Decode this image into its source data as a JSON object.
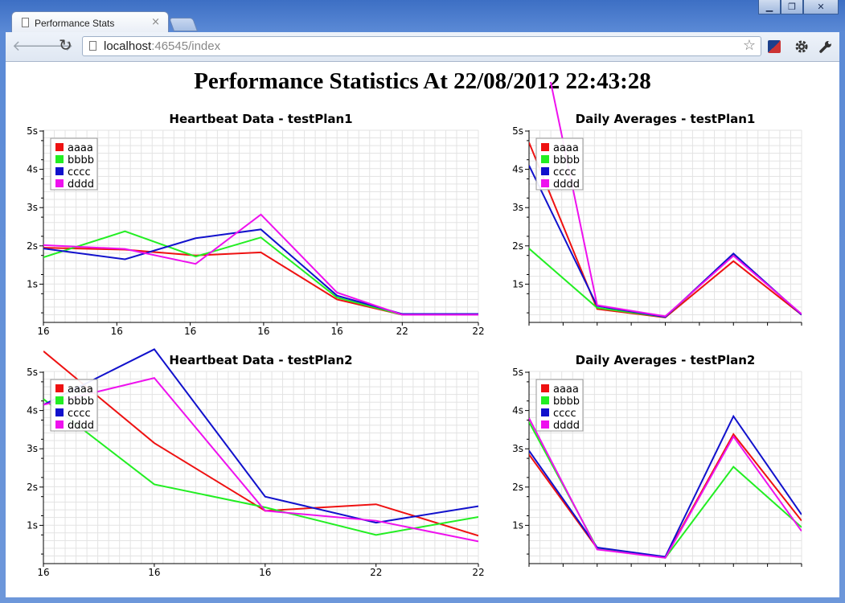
{
  "browser": {
    "tab_title": "Performance Stats",
    "tab_close": "×",
    "url_host": "localhost",
    "url_rest": ":46545/index",
    "back": "🡐",
    "forward": "🡒",
    "reload": "↻",
    "star": "☆",
    "window_buttons": [
      "▁",
      "❐",
      "✕"
    ]
  },
  "page": {
    "heading": "Performance Statistics At 22/08/2012 22:43:28"
  },
  "colors": {
    "aaaa": "#ee1111",
    "bbbb": "#22ee22",
    "cccc": "#1111cc",
    "dddd": "#ee11ee"
  },
  "chart_data": [
    {
      "id": "hb1",
      "type": "line",
      "title": "Heartbeat Data - testPlan1",
      "x_tick_labels": [
        "16",
        "16",
        "16",
        "16",
        "16",
        "22",
        "22"
      ],
      "y_tick_labels": [
        "1s",
        "2s",
        "3s",
        "4s",
        "5s"
      ],
      "ylim": [
        0,
        5
      ],
      "grid": true,
      "legend": "top-left",
      "series": [
        {
          "name": "aaaa",
          "x": [
            0,
            1.5,
            2.8,
            4.0,
            5.4,
            6.6,
            8.0
          ],
          "values": [
            1.95,
            1.9,
            1.75,
            1.83,
            0.6,
            0.2,
            0.2
          ]
        },
        {
          "name": "bbbb",
          "x": [
            0,
            1.5,
            2.8,
            4.0,
            5.4,
            6.6,
            8.0
          ],
          "values": [
            1.7,
            2.38,
            1.72,
            2.22,
            0.65,
            0.2,
            0.2
          ]
        },
        {
          "name": "cccc",
          "x": [
            0,
            1.5,
            2.8,
            4.0,
            5.4,
            6.6,
            8.0
          ],
          "values": [
            1.93,
            1.65,
            2.2,
            2.43,
            0.7,
            0.22,
            0.22
          ]
        },
        {
          "name": "dddd",
          "x": [
            0,
            1.5,
            2.8,
            4.0,
            5.4,
            6.6,
            8.0
          ],
          "values": [
            2.02,
            1.92,
            1.53,
            2.82,
            0.78,
            0.2,
            0.2
          ]
        }
      ]
    },
    {
      "id": "da1",
      "type": "line",
      "title": "Daily Averages - testPlan1",
      "x_tick_labels": [],
      "y_tick_labels": [
        "1s",
        "2s",
        "3s",
        "4s",
        "5s"
      ],
      "ylim": [
        0,
        5
      ],
      "grid": true,
      "legend": "top-left",
      "series": [
        {
          "name": "aaaa",
          "x": [
            0,
            1,
            2,
            3,
            4
          ],
          "values": [
            4.7,
            0.35,
            0.13,
            1.6,
            0.2
          ]
        },
        {
          "name": "bbbb",
          "x": [
            0,
            1,
            2,
            3,
            4
          ],
          "values": [
            1.93,
            0.38,
            0.14,
            1.77,
            0.21
          ]
        },
        {
          "name": "cccc",
          "x": [
            0,
            1,
            2,
            3,
            4
          ],
          "values": [
            4.1,
            0.43,
            0.14,
            1.8,
            0.2
          ]
        },
        {
          "name": "dddd",
          "x": [
            0,
            1,
            2,
            3,
            4
          ],
          "values": [
            9.0,
            0.45,
            0.16,
            1.74,
            0.22
          ]
        }
      ]
    },
    {
      "id": "hb2",
      "type": "line",
      "title": "Heartbeat Data - testPlan2",
      "x_tick_labels": [
        "16",
        "16",
        "16",
        "22",
        "22"
      ],
      "y_tick_labels": [
        "1s",
        "2s",
        "3s",
        "4s",
        "5s"
      ],
      "ylim": [
        0,
        5
      ],
      "grid": true,
      "legend": "top-left",
      "series": [
        {
          "name": "aaaa",
          "x": [
            0,
            1.3,
            2.6,
            3.9,
            5.1
          ],
          "values": [
            5.55,
            3.15,
            1.38,
            1.55,
            0.73
          ]
        },
        {
          "name": "bbbb",
          "x": [
            0,
            1.3,
            2.6,
            3.9,
            5.1
          ],
          "values": [
            4.3,
            2.07,
            1.47,
            0.75,
            1.22
          ]
        },
        {
          "name": "cccc",
          "x": [
            0,
            1.3,
            2.6,
            3.9,
            5.1
          ],
          "values": [
            4.15,
            5.6,
            1.75,
            1.07,
            1.5
          ]
        },
        {
          "name": "dddd",
          "x": [
            0,
            1.3,
            2.6,
            3.9,
            5.1
          ],
          "values": [
            4.15,
            4.85,
            1.38,
            1.12,
            0.58
          ]
        }
      ]
    },
    {
      "id": "da2",
      "type": "line",
      "title": "Daily Averages - testPlan2",
      "x_tick_labels": [],
      "y_tick_labels": [
        "1s",
        "2s",
        "3s",
        "4s",
        "5s"
      ],
      "ylim": [
        0,
        5
      ],
      "grid": true,
      "legend": "top-left",
      "series": [
        {
          "name": "aaaa",
          "x": [
            0,
            1,
            2,
            3,
            4
          ],
          "values": [
            2.85,
            0.4,
            0.17,
            3.38,
            1.12
          ]
        },
        {
          "name": "bbbb",
          "x": [
            0,
            1,
            2,
            3,
            4
          ],
          "values": [
            3.7,
            0.4,
            0.15,
            2.53,
            0.95
          ]
        },
        {
          "name": "cccc",
          "x": [
            0,
            1,
            2,
            3,
            4
          ],
          "values": [
            2.95,
            0.42,
            0.18,
            3.85,
            1.28
          ]
        },
        {
          "name": "dddd",
          "x": [
            0,
            1,
            2,
            3,
            4
          ],
          "values": [
            3.8,
            0.37,
            0.15,
            3.32,
            0.85
          ]
        }
      ]
    }
  ]
}
